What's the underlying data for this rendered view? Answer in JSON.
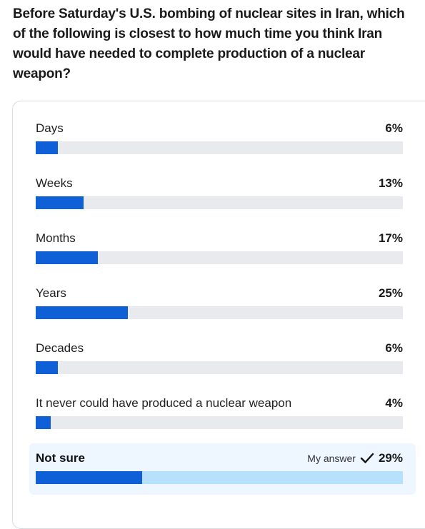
{
  "question": "Before Saturday's U.S. bombing of nuclear sites in Iran, which of the following is closest to how much time you think Iran would have needed to complete production of a nuclear weapon?",
  "options": [
    {
      "label": "Days",
      "percent_text": "6%",
      "percent": 6
    },
    {
      "label": "Weeks",
      "percent_text": "13%",
      "percent": 13
    },
    {
      "label": "Months",
      "percent_text": "17%",
      "percent": 17
    },
    {
      "label": "Years",
      "percent_text": "25%",
      "percent": 25
    },
    {
      "label": "Decades",
      "percent_text": "6%",
      "percent": 6
    },
    {
      "label": "It never could have produced a nuclear weapon",
      "percent_text": "4%",
      "percent": 4
    },
    {
      "label": "Not sure",
      "percent_text": "29%",
      "percent": 29,
      "selected": true
    }
  ],
  "my_answer_label": "My answer",
  "colors": {
    "fill": "#0f5fd6",
    "track": "#e9eaee",
    "selected_track": "#b6e0fb",
    "selected_bg": "#eef6ff"
  },
  "icons": {
    "selected_marker": "check-icon"
  }
}
